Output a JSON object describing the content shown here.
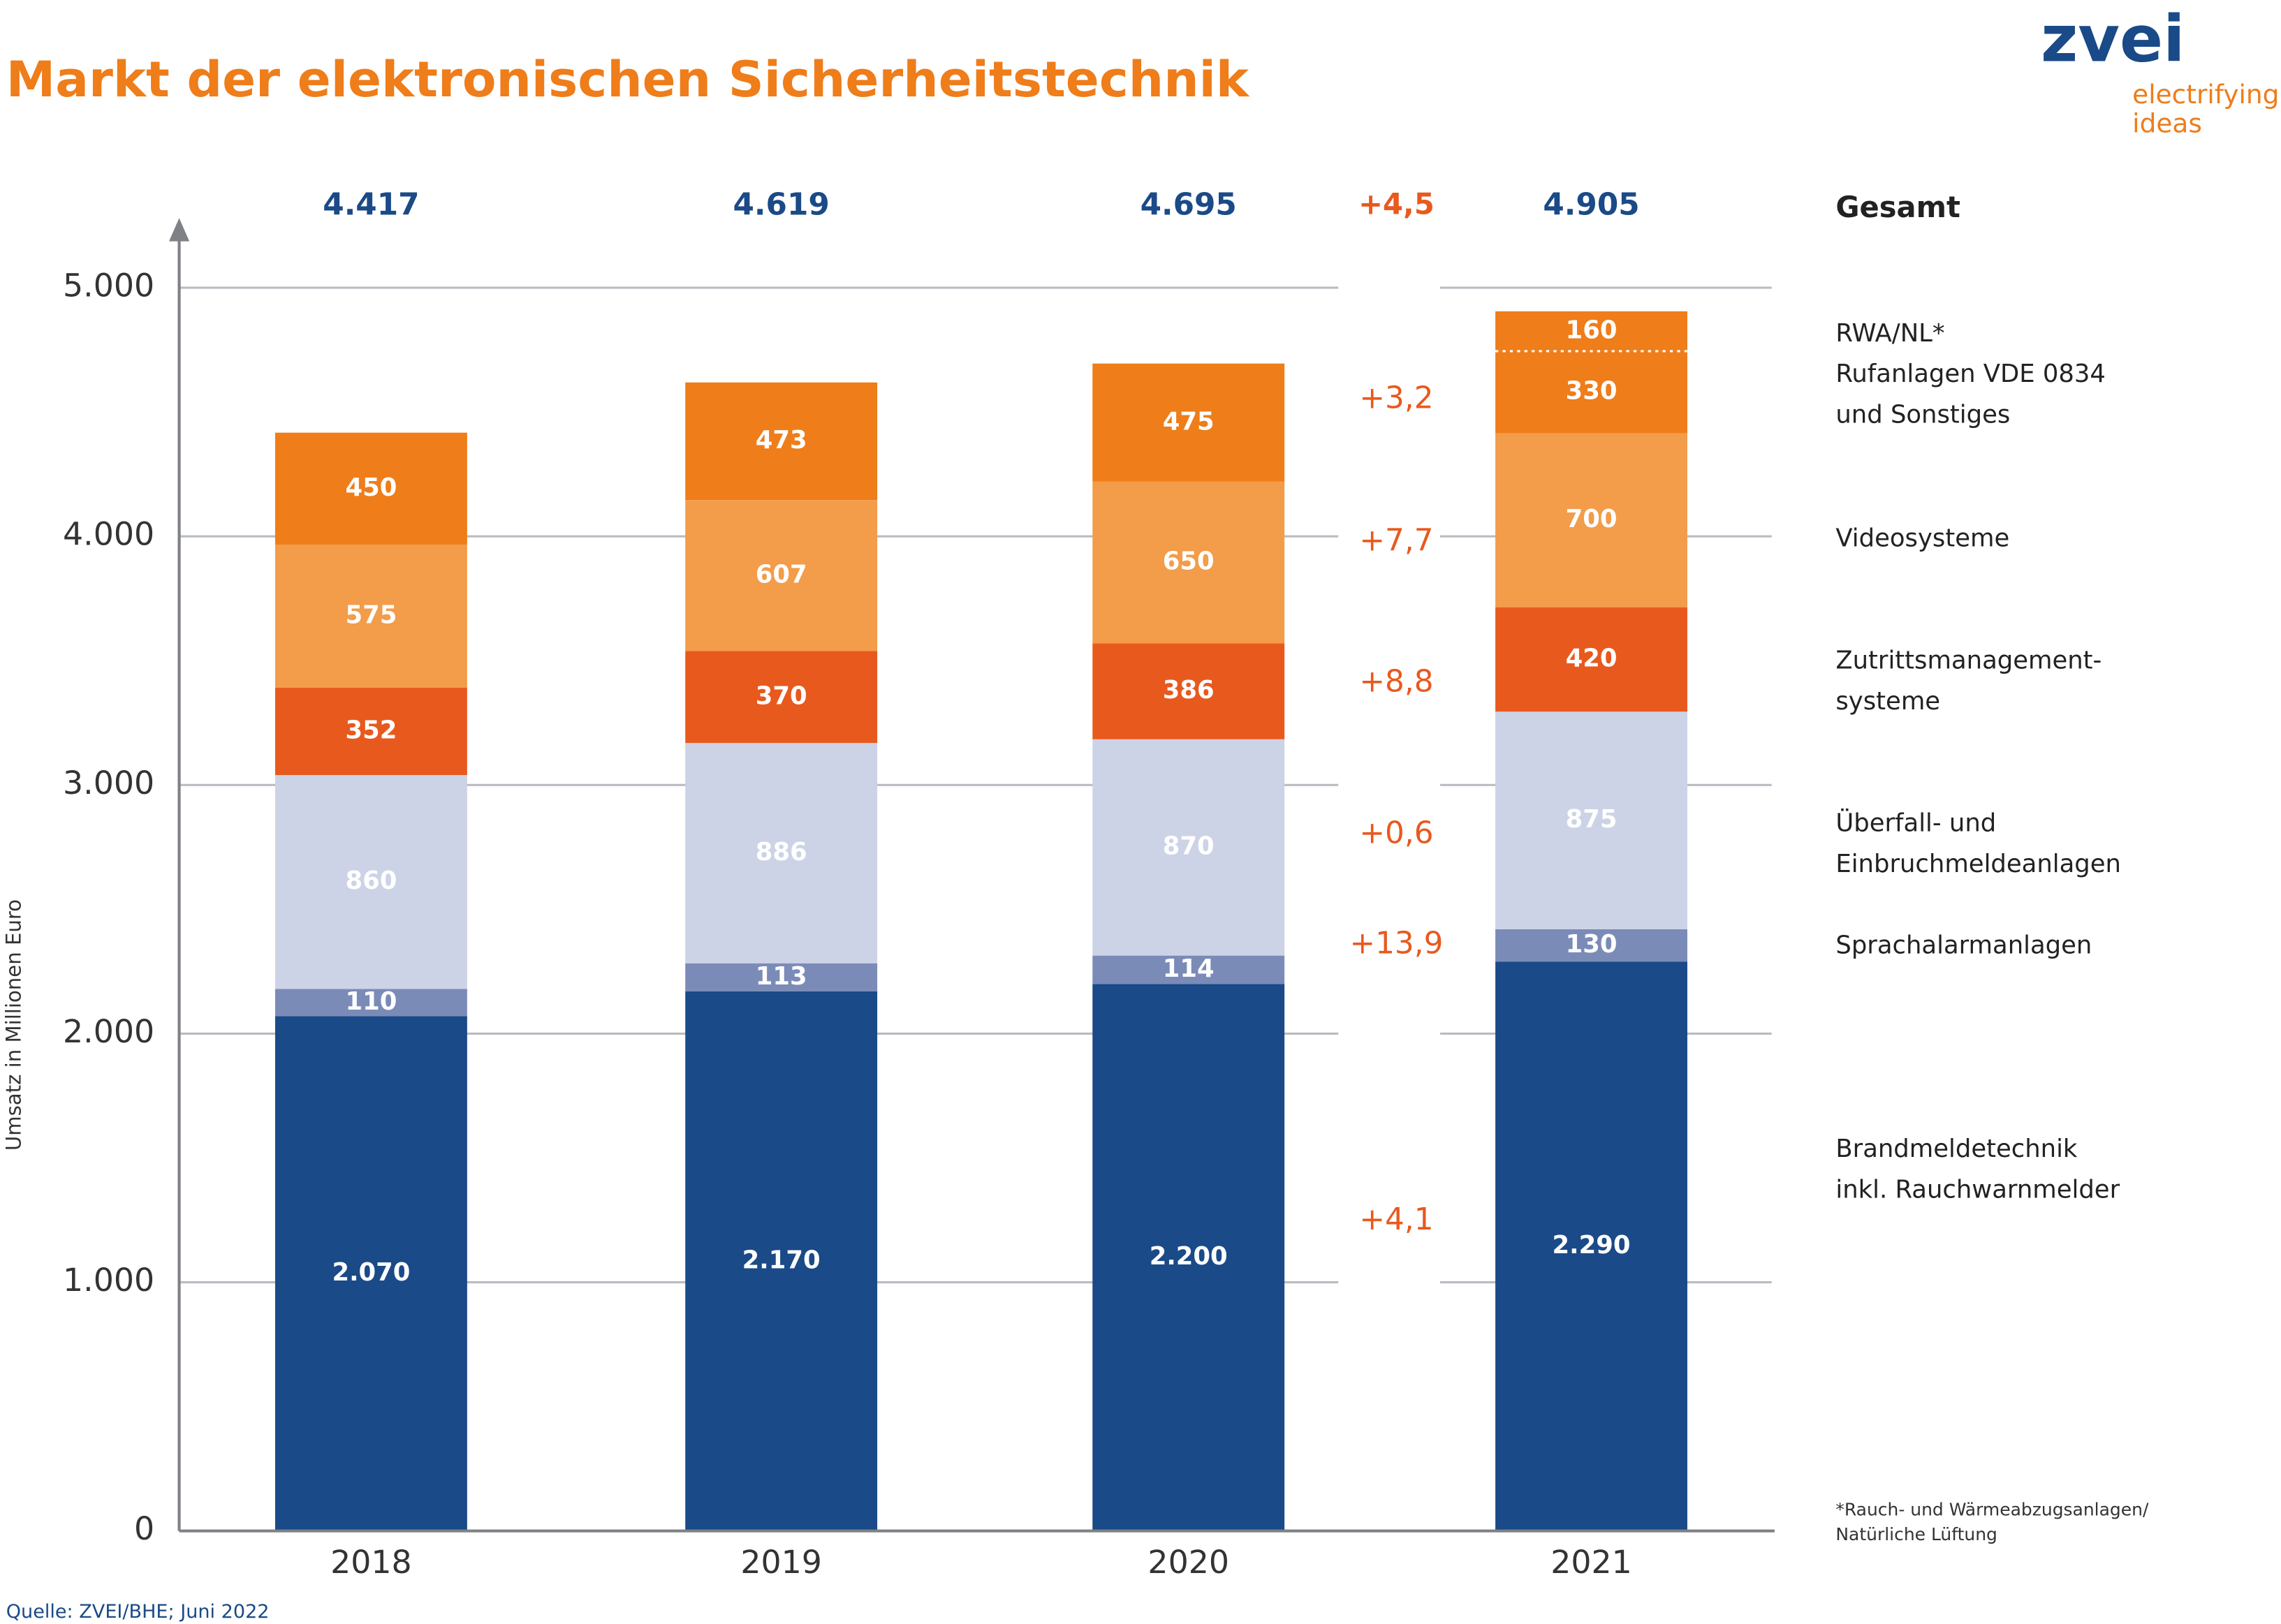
{
  "chart_data": {
    "type": "stacked_bar",
    "title": "Markt der elektronischen Sicherheitstechnik",
    "logo": {
      "name": "zvei",
      "lines": [
        "electrifying",
        "ideas"
      ]
    },
    "y_label": "Umsatz in Millionen Euro",
    "categories": [
      "2018",
      "2019",
      "2020",
      "2021"
    ],
    "ylim": [
      0,
      5280
    ],
    "yticks": [
      0,
      {
        "value": 1000,
        "label": "1.000"
      },
      {
        "value": 2000,
        "label": "2.000"
      },
      {
        "value": 3000,
        "label": "3.000"
      },
      {
        "value": 4000,
        "label": "4.000"
      },
      {
        "value": 5000,
        "label": "5.000"
      }
    ],
    "grid": true,
    "totals": {
      "name": "Gesamt",
      "values": [
        4417,
        4619,
        4695,
        4905
      ],
      "value_labels": [
        "4.417",
        "4.619",
        "4.695",
        "4.905"
      ],
      "growth": {
        "value": 4.5,
        "label": "+4,5"
      }
    },
    "series": [
      {
        "name": [
          "Brandmeldetechnik",
          "inkl. Rauchwarnmelder"
        ],
        "color": "#1a4a87",
        "values": [
          2070,
          2170,
          2200,
          2290
        ],
        "value_labels": [
          "2.070",
          "2.170",
          "2.200",
          "2.290"
        ],
        "growth": {
          "value": 4.1,
          "label": "+4,1"
        }
      },
      {
        "name": [
          "Sprachalarmanlagen"
        ],
        "color": "#7b8bb8",
        "values": [
          110,
          113,
          114,
          130
        ],
        "growth": {
          "value": 13.9,
          "label": "+13,9"
        }
      },
      {
        "name": [
          "Überfall- und",
          "Einbruchmeldeanlagen"
        ],
        "color": "#cdd3e6",
        "values": [
          860,
          886,
          870,
          875
        ],
        "growth": {
          "value": 0.6,
          "label": "+0,6"
        }
      },
      {
        "name": [
          "Zutrittsmanagement-",
          "systeme"
        ],
        "color": "#e8591e",
        "values": [
          352,
          370,
          386,
          420
        ],
        "growth": {
          "value": 8.8,
          "label": "+8,8"
        }
      },
      {
        "name": [
          "Videosysteme"
        ],
        "color": "#f39c4a",
        "values": [
          575,
          607,
          650,
          700
        ],
        "growth": {
          "value": 7.7,
          "label": "+7,7"
        }
      },
      {
        "name": [
          "Rufanlagen VDE 0834",
          "und Sonstiges"
        ],
        "color": "#ee7d1a",
        "values": [
          450,
          473,
          475,
          330
        ],
        "growth": {
          "value": 3.2,
          "label": "+3,2"
        }
      },
      {
        "name": [
          "RWA/NL*"
        ],
        "color": "#ee7d1a",
        "values": [
          null,
          null,
          null,
          160
        ]
      }
    ],
    "footnote": [
      "*Rauch- und Wärmeabzugsanlagen/",
      "Natürliche Lüftung"
    ],
    "source": "Quelle: ZVEI/BHE; Juni 2022"
  }
}
